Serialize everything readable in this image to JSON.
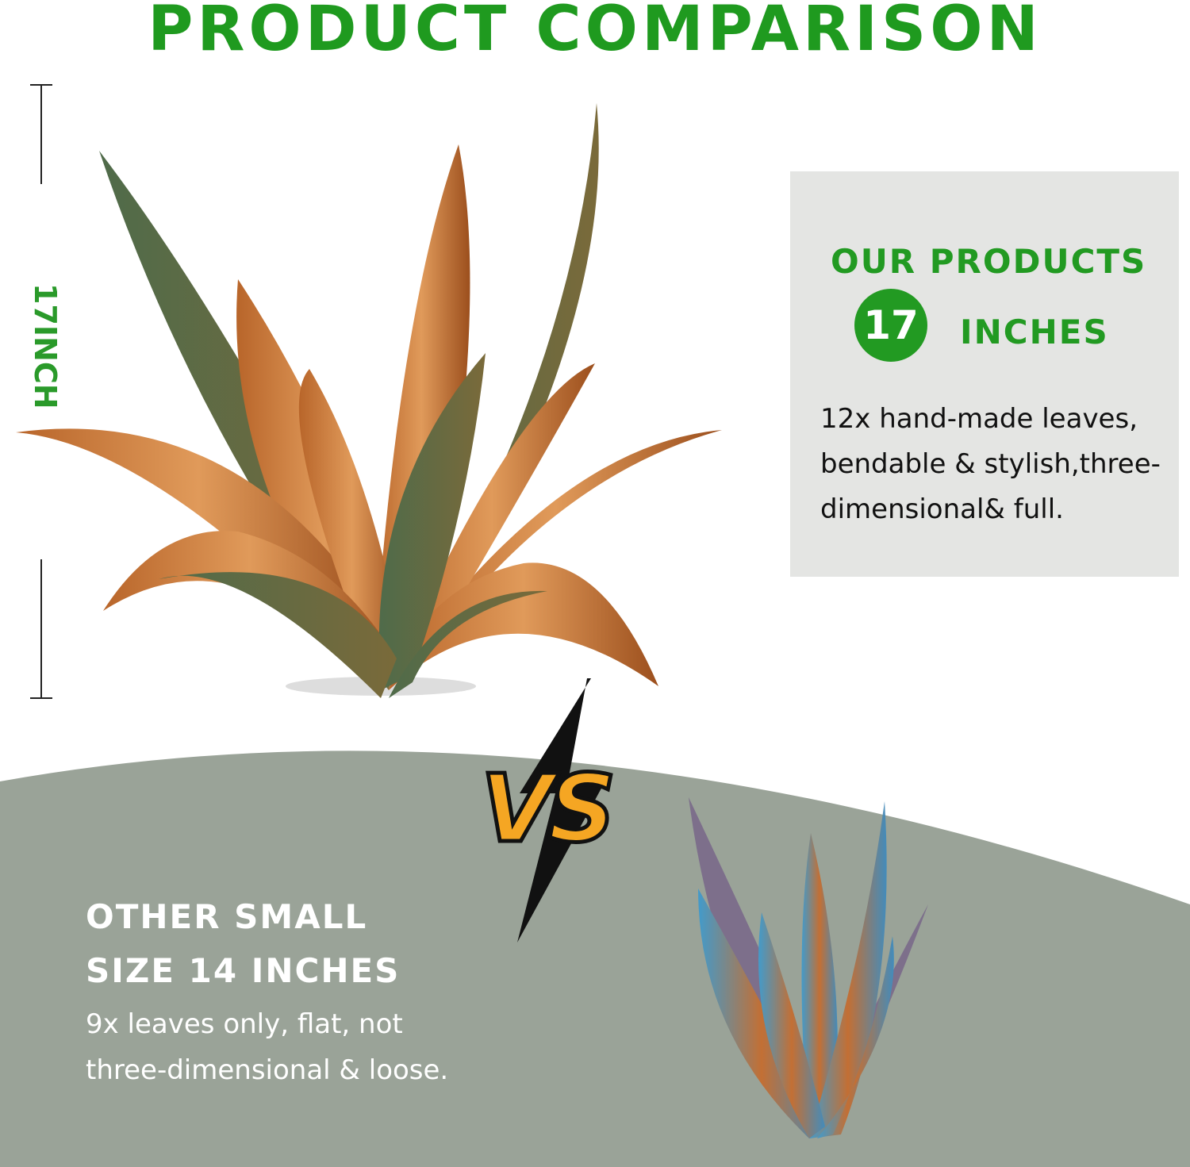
{
  "header": {
    "title": "PRODUCT COMPARISON"
  },
  "dimension": {
    "label": "17INCH"
  },
  "ours": {
    "title": "OUR PRODUCTS",
    "size_value": "17",
    "size_unit": "INCHES",
    "description": "12x hand-made leaves, bendable & stylish,three-dimensional& full."
  },
  "versus": {
    "label": "VS"
  },
  "other": {
    "title": "OTHER SMALL SIZE 14 INCHES",
    "description": "9x leaves only, flat, not three-dimensional & loose."
  },
  "colors": {
    "accent_green": "#229a22",
    "panel_gray": "#e4e5e3",
    "lower_bg": "#9aa398",
    "vs_orange": "#f5a623"
  }
}
